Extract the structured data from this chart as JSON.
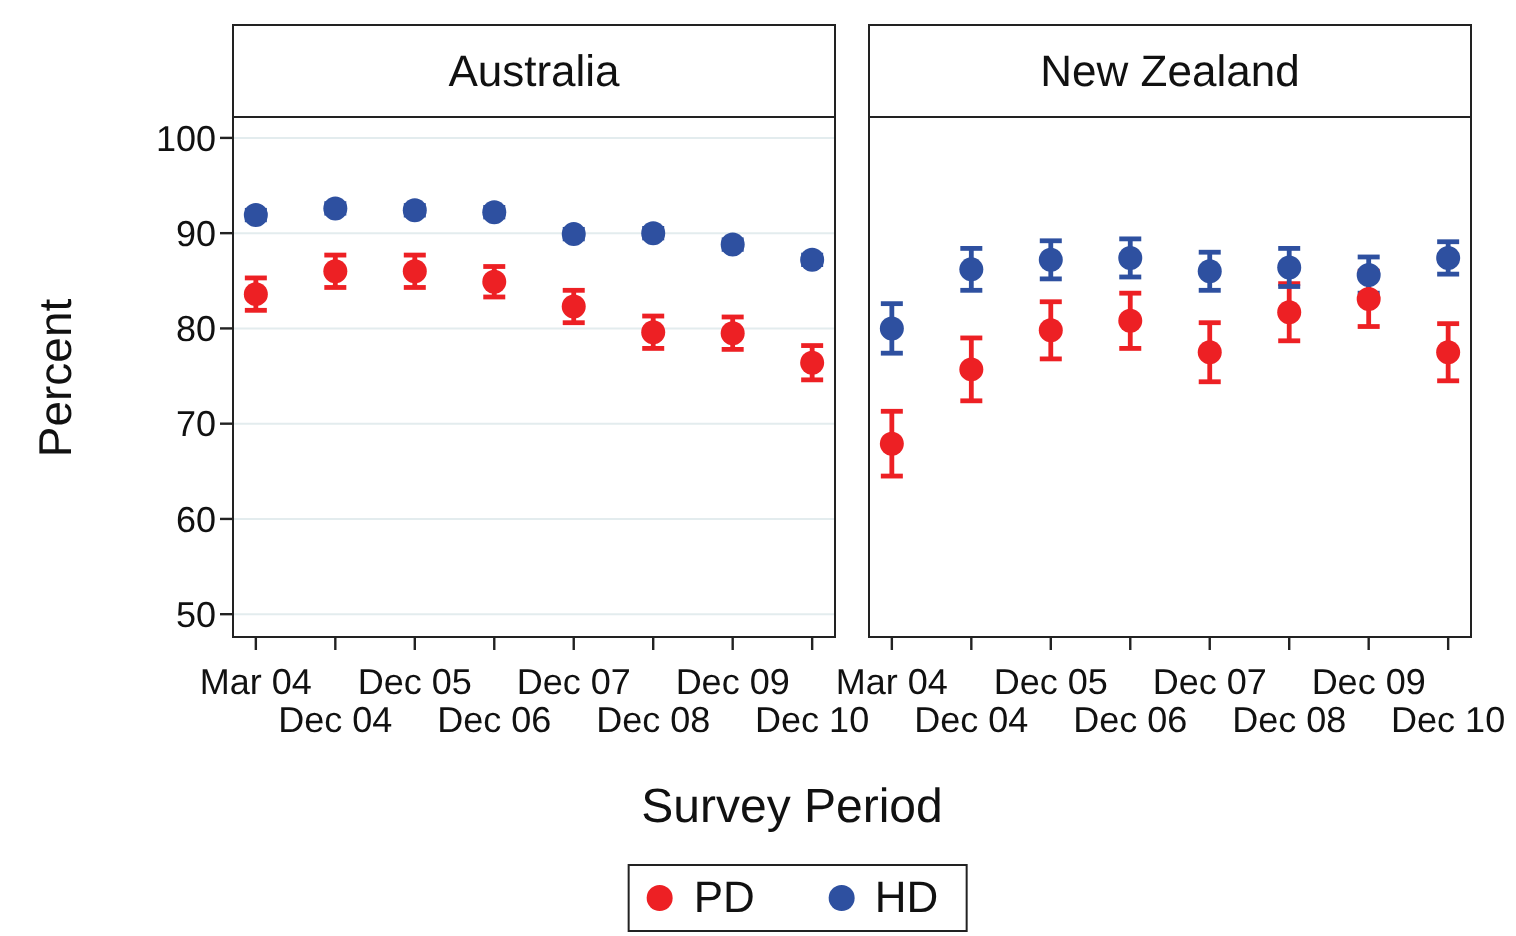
{
  "chart_data": [
    {
      "type": "scatter",
      "title": "Australia",
      "xlabel": "Survey Period",
      "ylabel": "Percent",
      "categories": [
        "Mar 04",
        "Dec 04",
        "Dec 05",
        "Dec 06",
        "Dec 07",
        "Dec 08",
        "Dec 09",
        "Dec 10"
      ],
      "series": [
        {
          "name": "PD",
          "color": "#ed2024",
          "values": [
            83.6,
            86.0,
            86.0,
            84.9,
            82.3,
            79.6,
            79.5,
            76.4
          ],
          "errors": [
            1.7,
            1.7,
            1.7,
            1.6,
            1.7,
            1.7,
            1.7,
            1.8
          ]
        },
        {
          "name": "HD",
          "color": "#2e50a0",
          "values": [
            91.9,
            92.6,
            92.4,
            92.2,
            89.9,
            90.0,
            88.8,
            87.2
          ],
          "errors": [
            0.5,
            0.5,
            0.5,
            0.5,
            0.5,
            0.5,
            0.5,
            0.5
          ]
        }
      ],
      "ylim": [
        47.5,
        102.3
      ],
      "yticks": [
        50,
        60,
        70,
        80,
        90,
        100
      ],
      "grid": "y",
      "legend": "bottom",
      "marker": "circle"
    },
    {
      "type": "scatter",
      "title": "New Zealand",
      "categories": [
        "Mar 04",
        "Dec 04",
        "Dec 05",
        "Dec 06",
        "Dec 07",
        "Dec 08",
        "Dec 09",
        "Dec 10"
      ],
      "series": [
        {
          "name": "PD",
          "color": "#ed2024",
          "values": [
            67.9,
            75.7,
            79.8,
            80.8,
            77.5,
            81.7,
            83.1,
            77.5
          ],
          "errors": [
            3.4,
            3.3,
            3.0,
            2.9,
            3.1,
            3.0,
            2.9,
            3.0
          ]
        },
        {
          "name": "HD",
          "color": "#2e50a0",
          "values": [
            80.0,
            86.2,
            87.2,
            87.4,
            86.0,
            86.4,
            85.6,
            87.4
          ],
          "errors": [
            2.6,
            2.2,
            2.0,
            2.0,
            2.0,
            2.0,
            1.9,
            1.7
          ]
        }
      ],
      "ylim": [
        47.5,
        102.3
      ],
      "yticks": [
        50,
        60,
        70,
        80,
        90,
        100
      ],
      "grid": "y",
      "marker": "circle",
      "tick_labels": "x"
    }
  ]
}
